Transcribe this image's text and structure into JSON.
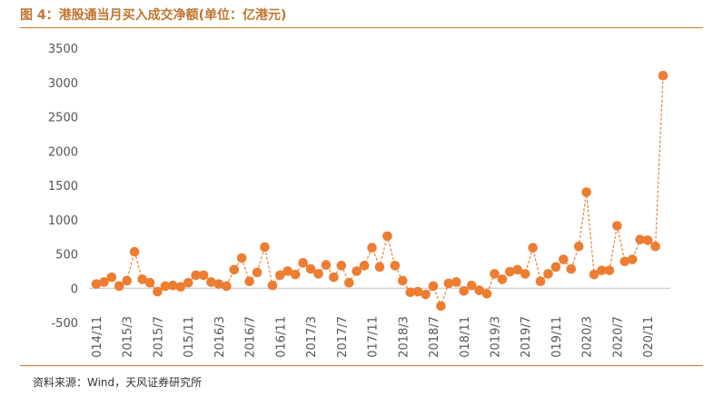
{
  "title": "图 4：港股通当月买入成交净额(单位：亿港元)",
  "source": "资料来源：Wind，天风证券研究所",
  "colors": {
    "accent": "#ED7D31",
    "rule": "#D07A2E",
    "title": "#C0752E"
  },
  "chart_data": {
    "type": "line",
    "title": "",
    "xlabel": "",
    "ylabel": "",
    "ylim": [
      -500,
      3500
    ],
    "yticks": [
      -500,
      0,
      500,
      1000,
      1500,
      2000,
      2500,
      3000,
      3500
    ],
    "grid": false,
    "line_style": "dashed with circle markers",
    "x_tick_labels": [
      "2014/11",
      "2015/3",
      "2015/7",
      "2015/11",
      "2016/3",
      "2016/7",
      "2016/11",
      "2017/3",
      "2017/7",
      "2017/11",
      "2018/3",
      "2018/7",
      "2018/11",
      "2019/3",
      "2019/7",
      "2019/11",
      "2020/3",
      "2020/7",
      "2020/11"
    ],
    "x": [
      "2014/11",
      "2014/12",
      "2015/1",
      "2015/2",
      "2015/3",
      "2015/4",
      "2015/5",
      "2015/6",
      "2015/7",
      "2015/8",
      "2015/9",
      "2015/10",
      "2015/11",
      "2015/12",
      "2016/1",
      "2016/2",
      "2016/3",
      "2016/4",
      "2016/5",
      "2016/6",
      "2016/7",
      "2016/8",
      "2016/9",
      "2016/10",
      "2016/11",
      "2016/12",
      "2017/1",
      "2017/2",
      "2017/3",
      "2017/4",
      "2017/5",
      "2017/6",
      "2017/7",
      "2017/8",
      "2017/9",
      "2017/10",
      "2017/11",
      "2017/12",
      "2018/1",
      "2018/2",
      "2018/3",
      "2018/4",
      "2018/5",
      "2018/6",
      "2018/7",
      "2018/8",
      "2018/9",
      "2018/10",
      "2018/11",
      "2018/12",
      "2019/1",
      "2019/2",
      "2019/3",
      "2019/4",
      "2019/5",
      "2019/6",
      "2019/7",
      "2019/8",
      "2019/9",
      "2019/10",
      "2019/11",
      "2019/12",
      "2020/1",
      "2020/2",
      "2020/3",
      "2020/4",
      "2020/5",
      "2020/6",
      "2020/7",
      "2020/8",
      "2020/9",
      "2020/10",
      "2020/11",
      "2020/12",
      "2021/1"
    ],
    "series": [
      {
        "values": [
          60,
          90,
          160,
          30,
          110,
          530,
          130,
          80,
          -50,
          30,
          40,
          20,
          80,
          190,
          190,
          90,
          60,
          30,
          270,
          440,
          100,
          230,
          600,
          40,
          190,
          250,
          200,
          370,
          280,
          210,
          340,
          160,
          330,
          80,
          250,
          330,
          590,
          310,
          760,
          330,
          110,
          -60,
          -50,
          -90,
          30,
          -260,
          70,
          90,
          -40,
          40,
          -30,
          -80,
          210,
          130,
          240,
          270,
          210,
          590,
          100,
          210,
          310,
          420,
          280,
          610,
          1400,
          200,
          260,
          260,
          910,
          390,
          420,
          710,
          700,
          610,
          3100
        ]
      }
    ]
  }
}
